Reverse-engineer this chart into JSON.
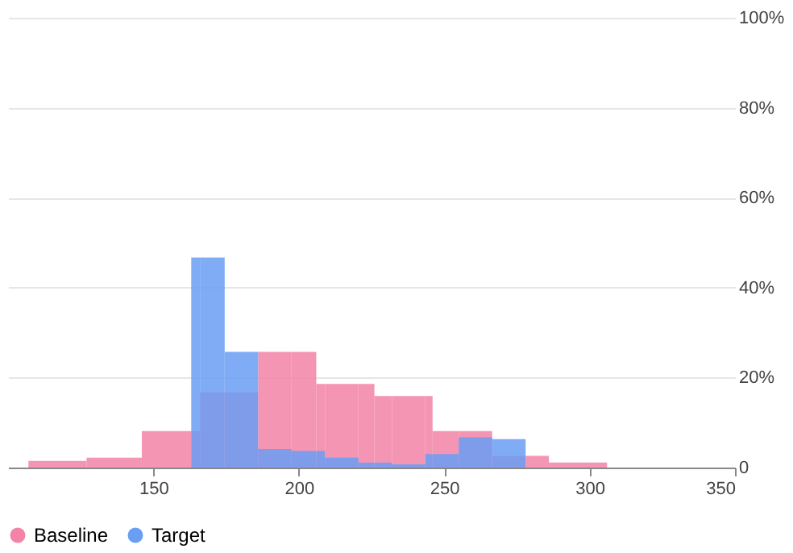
{
  "chart_data": {
    "type": "histogram",
    "xlim": [
      100,
      350
    ],
    "xticks": [
      150,
      200,
      250,
      300,
      350
    ],
    "ylim": [
      0,
      100
    ],
    "yticks": [
      {
        "value": 0,
        "label": "0"
      },
      {
        "value": 20,
        "label": "20%"
      },
      {
        "value": 40,
        "label": "40%"
      },
      {
        "value": 60,
        "label": "60%"
      },
      {
        "value": 80,
        "label": "80%"
      },
      {
        "value": 100,
        "label": "100%"
      }
    ],
    "grid": "y",
    "legend": "bottom",
    "bins": [
      107,
      127,
      146,
      163,
      166,
      174.5,
      186,
      197.5,
      206,
      209,
      220.5,
      226,
      232,
      243.5,
      246,
      255,
      266.5,
      278,
      286,
      306
    ],
    "series": [
      {
        "name": "Baseline",
        "color": "#f383a7",
        "values": [
          1.5,
          2.2,
          8.1,
          8.1,
          16.7,
          16.7,
          25.7,
          25.7,
          18.6,
          18.6,
          18.6,
          15.9,
          15.9,
          15.9,
          8.1,
          8.1,
          2.6,
          2.6,
          1.1
        ]
      },
      {
        "name": "Target",
        "color": "#6a9ef4",
        "values": [
          null,
          null,
          null,
          46.7,
          46.7,
          25.7,
          4.1,
          3.7,
          3.7,
          2.2,
          1.1,
          1.1,
          0.7,
          3.0,
          3.0,
          6.7,
          6.3,
          null,
          null
        ]
      }
    ]
  }
}
